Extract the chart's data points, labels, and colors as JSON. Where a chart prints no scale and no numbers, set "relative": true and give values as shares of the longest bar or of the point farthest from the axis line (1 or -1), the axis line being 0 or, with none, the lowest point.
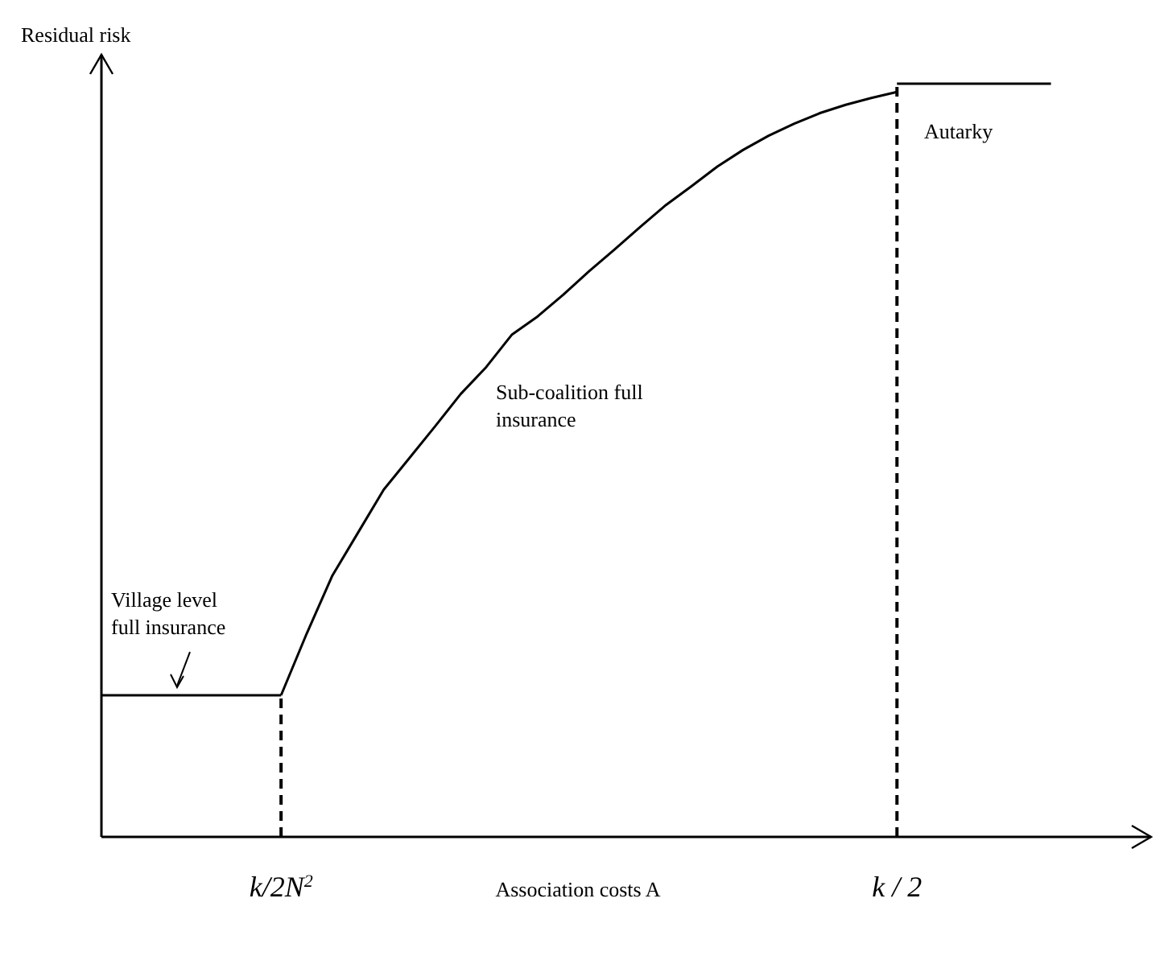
{
  "chart_data": {
    "type": "line",
    "relative": true,
    "ylabel": "Residual risk",
    "xlabel": "Association costs A",
    "categories": [
      null,
      null,
      null,
      null,
      null,
      null,
      null,
      "k/2N$^{2}$",
      null,
      null,
      null,
      null,
      null,
      null,
      null,
      null,
      null,
      null,
      null,
      null,
      null,
      null,
      null,
      null,
      null,
      null,
      null,
      null,
      null,
      null,
      null,
      "k / 2",
      null,
      null,
      null,
      null,
      null,
      null,
      null,
      null,
      null,
      null
    ],
    "line_style": "solid",
    "marker": "none",
    "series": [
      {
        "color": "#000000",
        "values": [
          0.188,
          0.188,
          0.188,
          0.188,
          0.188,
          0.188,
          0.188,
          0.188,
          null,
          null,
          null,
          null,
          null,
          null,
          null,
          null,
          null,
          null,
          null,
          null,
          null,
          null,
          null,
          null,
          null,
          null,
          null,
          null,
          null,
          null,
          null,
          null,
          null,
          null,
          null,
          null,
          null,
          null,
          null,
          null,
          null,
          null
        ]
      },
      {
        "color": "#000000",
        "values": [
          null,
          null,
          null,
          null,
          null,
          null,
          null,
          0.188,
          0.27,
          0.347,
          0.404,
          0.461,
          0.503,
          0.545,
          0.588,
          0.624,
          0.667,
          0.691,
          0.72,
          0.751,
          0.78,
          0.81,
          0.839,
          0.864,
          0.89,
          0.912,
          0.931,
          0.947,
          0.961,
          0.972,
          0.981,
          0.989,
          null,
          null,
          null,
          null,
          null,
          null,
          null,
          null,
          null,
          null
        ]
      },
      {
        "color": "#000000",
        "values": [
          null,
          null,
          null,
          null,
          null,
          null,
          null,
          null,
          null,
          null,
          null,
          null,
          null,
          null,
          null,
          null,
          null,
          null,
          null,
          null,
          null,
          null,
          null,
          null,
          null,
          null,
          null,
          null,
          null,
          null,
          null,
          1,
          1,
          1,
          1,
          1,
          1,
          1,
          null,
          null,
          null,
          null
        ]
      }
    ],
    "ref_lines": [
      {
        "axis": "x",
        "value": "k/2N$^{2}$",
        "line_style": "dashed",
        "color": "#000000"
      },
      {
        "axis": "x",
        "value": "k / 2",
        "line_style": "dashed",
        "color": "#000000"
      }
    ],
    "annotations": [
      {
        "text": "Village level\nfull insurance",
        "y": 0.188
      },
      "Sub-coalition full\ninsurance",
      "Autarky"
    ]
  }
}
